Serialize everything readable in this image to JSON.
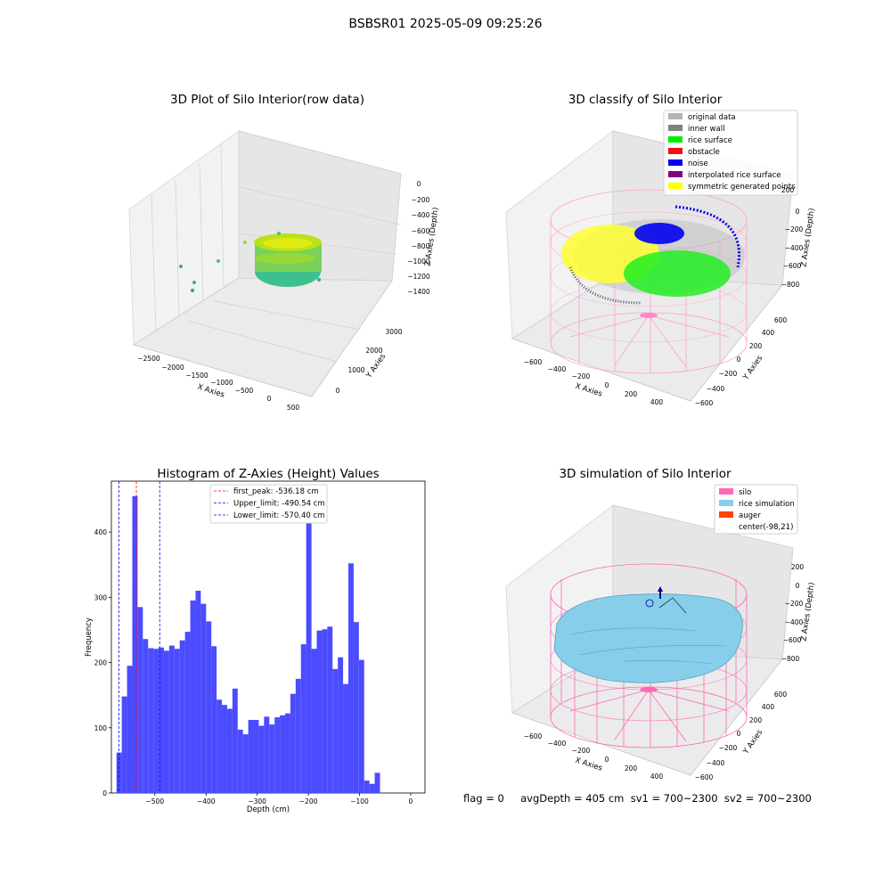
{
  "figure": {
    "suptitle": "BSBSR01 2025-05-09 09:25:26",
    "bottom_text": "flag = 0     avgDepth = 405 cm  sv1 = 700~2300  sv2 = 700~2300"
  },
  "panel1": {
    "title": "3D Plot of Silo Interior(row data)",
    "xlabel": "X Axies",
    "ylabel": "Y Axies",
    "zlabel": "Z Axies (Depth)",
    "xticks": [
      "−2500",
      "−2000",
      "−1500",
      "−1000",
      "−500",
      "0",
      "500"
    ],
    "yticks": [
      "0",
      "1000",
      "2000",
      "3000"
    ],
    "zticks": [
      "0",
      "−200",
      "−400",
      "−600",
      "−800",
      "−1000",
      "−1200",
      "−1400"
    ]
  },
  "panel2": {
    "title": "3D classify of Silo Interior",
    "xlabel": "X Axies",
    "ylabel": "Y Axies",
    "zlabel": "Z Axies (Depth)",
    "xticks": [
      "−600",
      "−400",
      "−200",
      "0",
      "200",
      "400"
    ],
    "yticks": [
      "−600",
      "−400",
      "−200",
      "0",
      "200",
      "400",
      "600"
    ],
    "zticks": [
      "0",
      "−200",
      "−400",
      "−600",
      "−800"
    ],
    "legend": [
      {
        "label": "original data",
        "color": "#b4b4b4"
      },
      {
        "label": "inner wall",
        "color": "#808080"
      },
      {
        "label": "rice surface",
        "color": "#00ee00"
      },
      {
        "label": "obstacle",
        "color": "#ee1111"
      },
      {
        "label": "noise",
        "color": "#0000ee"
      },
      {
        "label": "interpolated rice surface",
        "color": "#800080"
      },
      {
        "label": "symmetric generated points",
        "color": "#ffff00"
      }
    ],
    "extra_tick": "200"
  },
  "panel4": {
    "title": "3D simulation of Silo Interior",
    "xlabel": "X Axies",
    "ylabel": "Y Axies",
    "zlabel": "Z Axies (Depth)",
    "xticks": [
      "−600",
      "−400",
      "−200",
      "0",
      "200",
      "400"
    ],
    "yticks": [
      "−600",
      "−400",
      "−200",
      "0",
      "200",
      "400",
      "600"
    ],
    "zticks": [
      "200",
      "0",
      "−200",
      "−400",
      "−600",
      "−800"
    ],
    "legend": [
      {
        "label": "silo",
        "color": "#ff69b4"
      },
      {
        "label": "rice simulation",
        "color": "#87ceeb"
      },
      {
        "label": "auger",
        "color": "#ff4500"
      },
      {
        "label": "center(-98,21)",
        "color": "#ffffff"
      }
    ]
  },
  "chart_data": [
    {
      "type": "bar",
      "title": "Histogram of Z-Axies (Height) Values",
      "xlabel": "Depth (cm)",
      "ylabel": "Frequency",
      "xlim": [
        -585,
        28
      ],
      "ylim": [
        0,
        478
      ],
      "xticks": [
        -500,
        -400,
        -300,
        -200,
        -100,
        0
      ],
      "xtick_labels": [
        "−500",
        "−400",
        "−300",
        "−200",
        "−100",
        "0"
      ],
      "yticks": [
        0,
        100,
        200,
        300,
        400
      ],
      "yticks_labels": [
        "0",
        "100",
        "200",
        "300",
        "400"
      ],
      "bin_start": -575,
      "bin_width": 10.3,
      "values": [
        62,
        148,
        195,
        455,
        285,
        236,
        222,
        221,
        223,
        218,
        226,
        221,
        234,
        247,
        295,
        310,
        290,
        263,
        225,
        143,
        135,
        129,
        160,
        97,
        90,
        112,
        112,
        103,
        117,
        105,
        116,
        119,
        122,
        152,
        175,
        228,
        417,
        221,
        249,
        251,
        255,
        190,
        208,
        167,
        352,
        262,
        204,
        19,
        14,
        31
      ],
      "bar_color": "#4b4bff",
      "lines": [
        {
          "x": -536.18,
          "color": "#ff0000",
          "label": "first_peak: -536.18 cm"
        },
        {
          "x": -490.54,
          "color": "#0000ff",
          "label": "Upper_limit: -490.54 cm"
        },
        {
          "x": -570.4,
          "color": "#0000ff",
          "label": "Lower_limit: -570.40 cm"
        }
      ],
      "legend_position": "top-center",
      "grid": false
    }
  ]
}
